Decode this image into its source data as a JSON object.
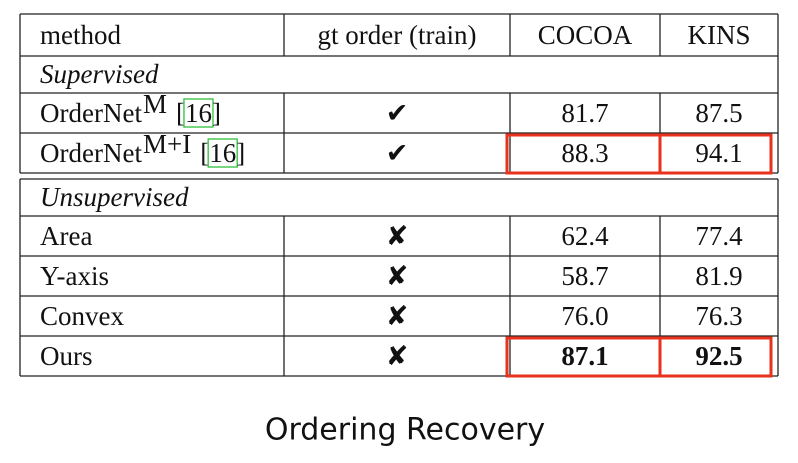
{
  "table": {
    "header": [
      "method",
      "gt order (train)",
      "COCOA",
      "KINS"
    ],
    "brackets": [
      "[",
      "]"
    ],
    "sections": [
      {
        "title": "Supervised",
        "rows": [
          {
            "method": "OrderNet",
            "sup": "M",
            "cite": "16",
            "gt": "✔",
            "cocoa": "81.7",
            "kins": "87.5"
          },
          {
            "method": "OrderNet",
            "sup": "M+I",
            "cite": "16",
            "gt": "✔",
            "cocoa": "88.3",
            "kins": "94.1",
            "highlight": true
          }
        ]
      },
      {
        "title": "Unsupervised",
        "rows": [
          {
            "method": "Area",
            "gt": "✘",
            "cocoa": "62.4",
            "kins": "77.4"
          },
          {
            "method": "Y-axis",
            "gt": "✘",
            "cocoa": "58.7",
            "kins": "81.9"
          },
          {
            "method": "Convex",
            "gt": "✘",
            "cocoa": "76.0",
            "kins": "76.3"
          },
          {
            "method": "Ours",
            "gt": "✘",
            "cocoa": "87.1",
            "kins": "92.5",
            "bold": true,
            "highlight": true
          }
        ]
      }
    ]
  },
  "caption": "Ordering Recovery"
}
